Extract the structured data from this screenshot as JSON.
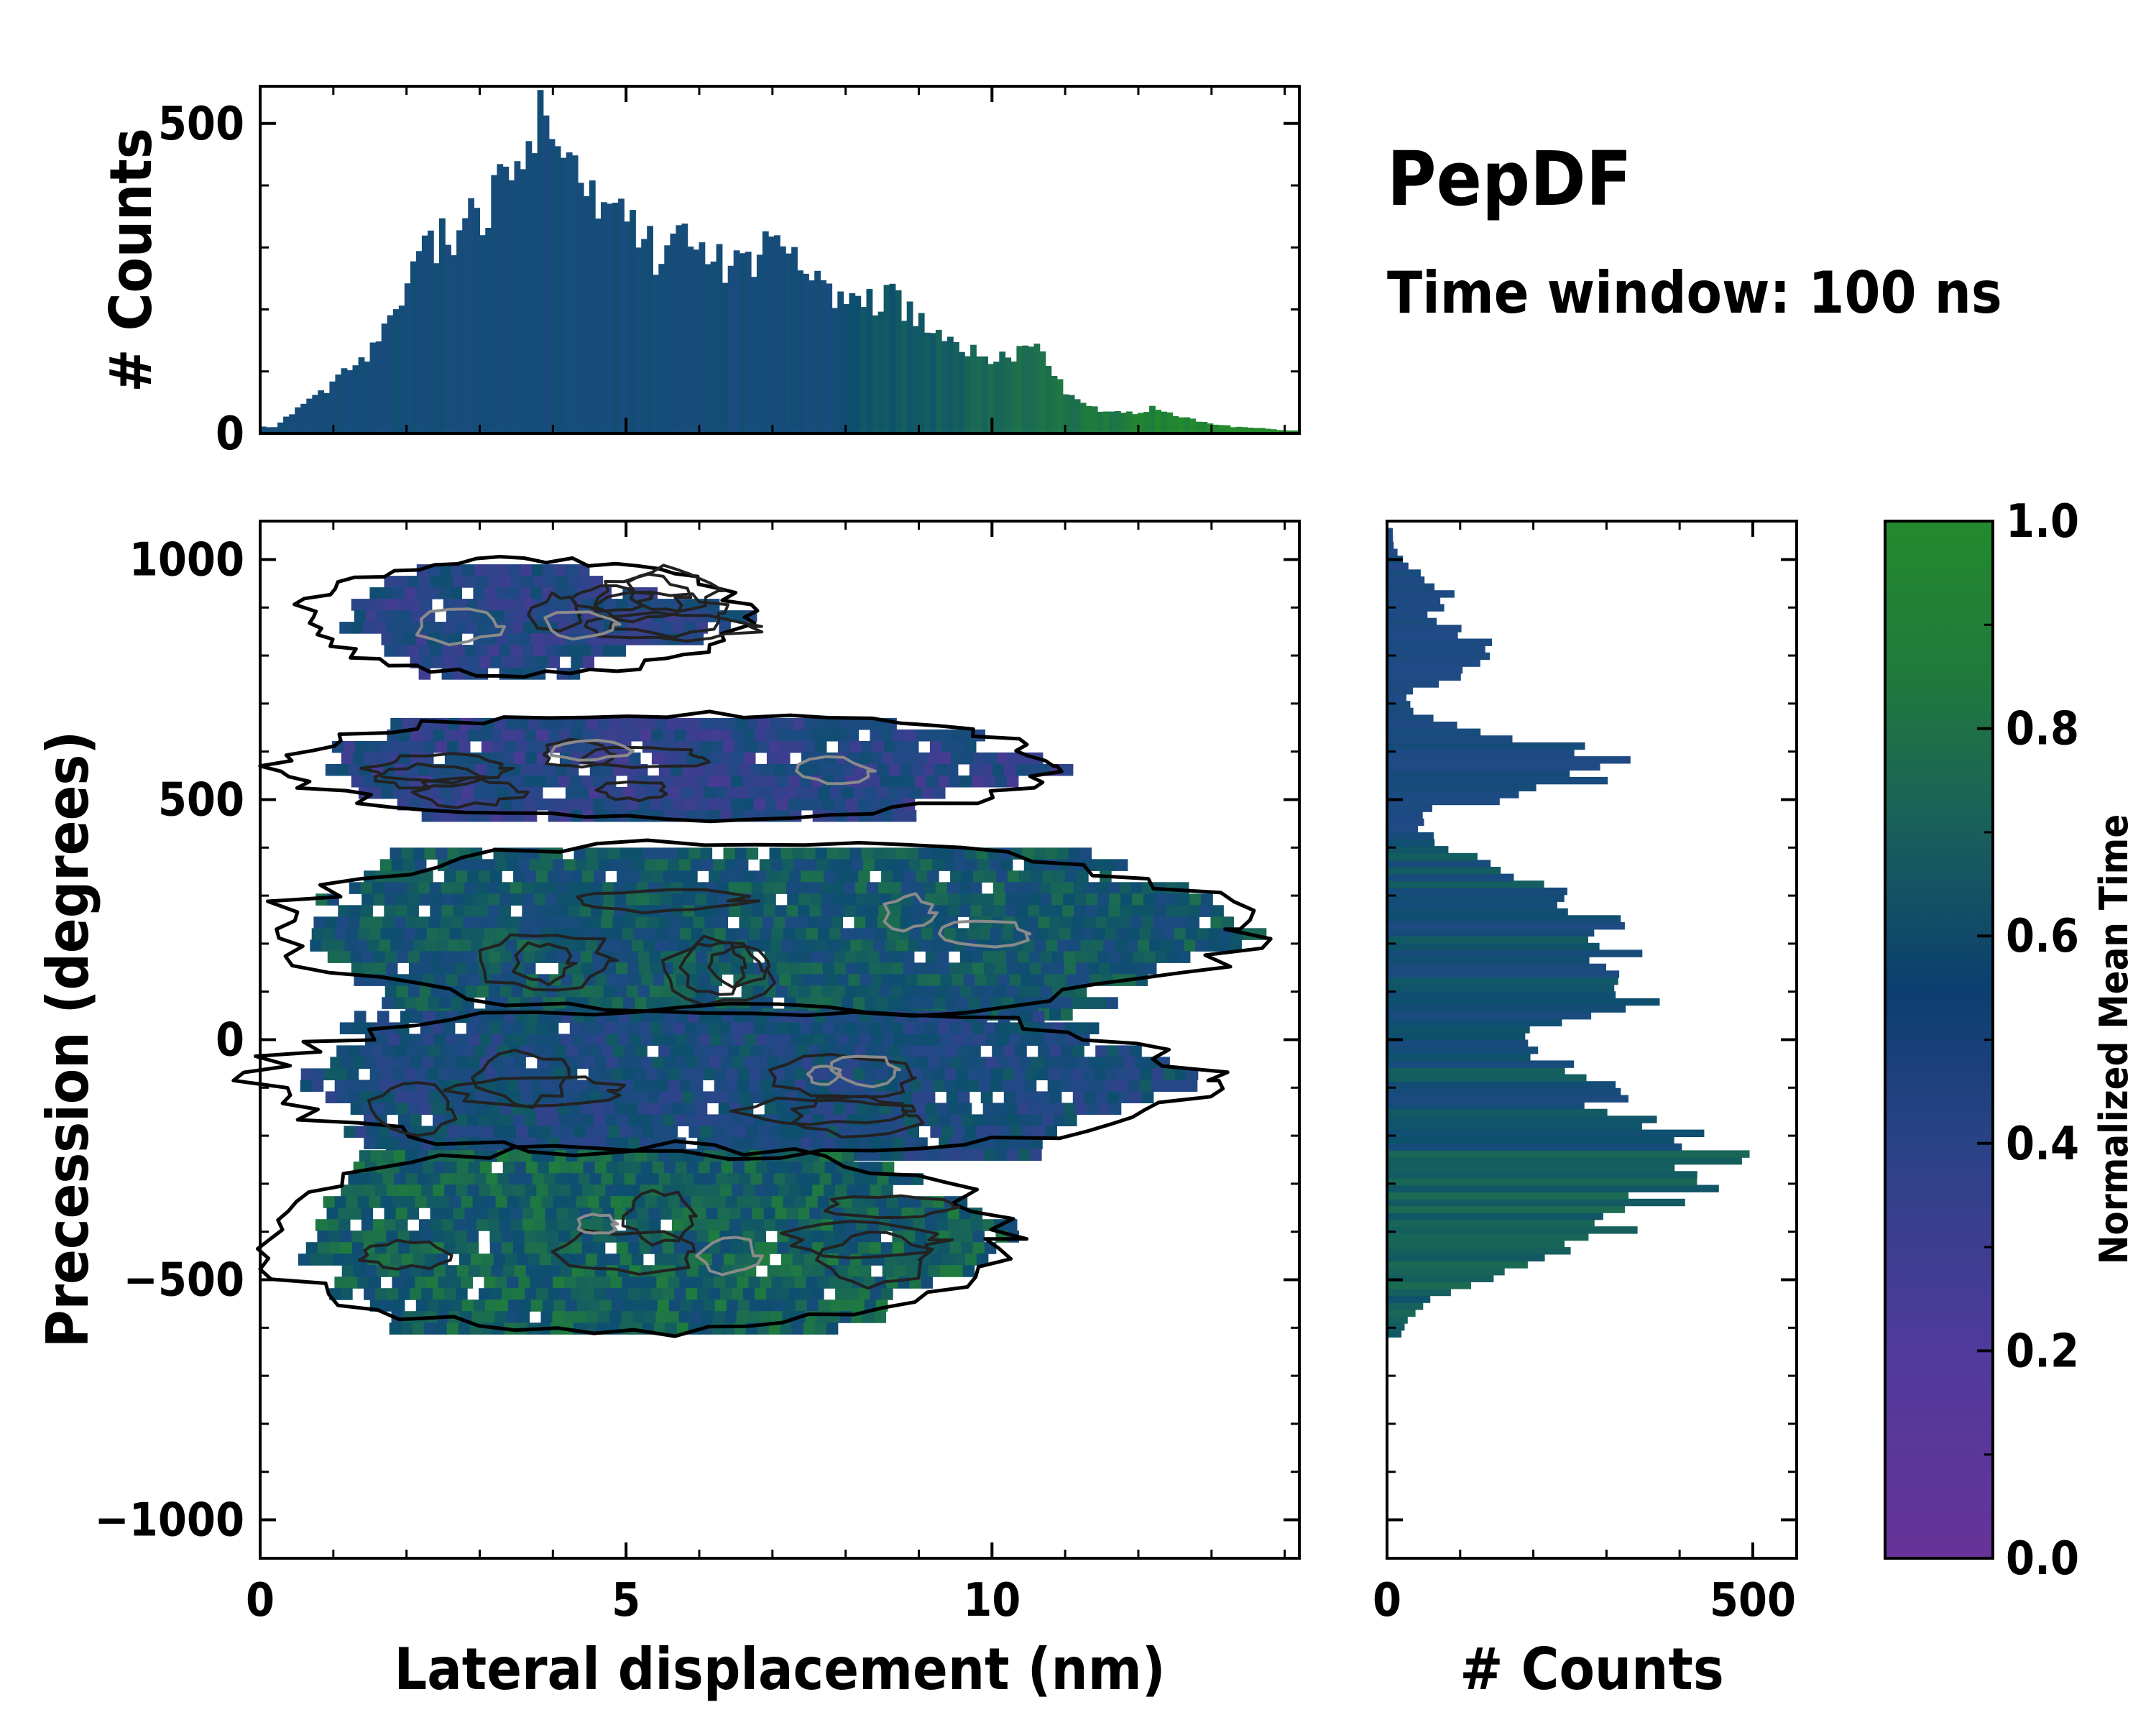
{
  "annotation": {
    "title": "PepDF",
    "subtitle": "Time window: 100 ns"
  },
  "chart_data": [
    {
      "type": "heatmap",
      "name": "joint-distribution",
      "xlabel": "Lateral displacement (nm)",
      "ylabel": "Precession (degrees)",
      "xlim": [
        0,
        14.2
      ],
      "ylim": [
        -1080,
        1080
      ],
      "xticks": [
        0,
        5,
        10
      ],
      "yticks": [
        -1000,
        -500,
        0,
        500,
        1000
      ],
      "xtick_labels": [
        "0",
        "5",
        "10"
      ],
      "ytick_labels": [
        "−1000",
        "−500",
        "0",
        "500",
        "1000"
      ],
      "contours": "density contours overlaid (black outer, grey inner levels)",
      "regions": [
        {
          "label": "upper band",
          "x": [
            0.8,
            7.2
          ],
          "y": [
            770,
            990
          ],
          "mean_time": 0.38
        },
        {
          "label": "upper-mid band",
          "x": [
            0.4,
            11.5
          ],
          "y": [
            470,
            670
          ],
          "mean_time": 0.35
        },
        {
          "label": "middle band",
          "x": [
            0.3,
            14.0
          ],
          "y": [
            60,
            400
          ],
          "mean_time": 0.62
        },
        {
          "label": "center band",
          "x": [
            0.2,
            13.4
          ],
          "y": [
            -230,
            60
          ],
          "mean_time": 0.48
        },
        {
          "label": "lower band",
          "x": [
            0.2,
            10.8
          ],
          "y": [
            -600,
            -230
          ],
          "mean_time": 0.7
        }
      ]
    },
    {
      "type": "bar",
      "name": "top-histogram",
      "ylabel": "# Counts",
      "xlim": [
        0,
        14.2
      ],
      "ylim": [
        0,
        560
      ],
      "yticks": [
        0,
        500
      ],
      "ytick_labels": [
        "0",
        "500"
      ],
      "x": [
        0.2,
        0.6,
        1.0,
        1.4,
        1.8,
        2.2,
        2.6,
        3.0,
        3.4,
        3.8,
        4.2,
        4.6,
        5.0,
        5.4,
        5.8,
        6.2,
        6.6,
        7.0,
        7.4,
        7.8,
        8.2,
        8.6,
        9.0,
        9.4,
        9.8,
        10.2,
        10.6,
        11.0,
        11.4,
        11.8,
        12.2,
        12.6,
        13.0,
        13.4,
        13.8,
        14.0
      ],
      "values": [
        10,
        50,
        80,
        120,
        175,
        300,
        320,
        355,
        420,
        500,
        490,
        360,
        340,
        290,
        340,
        280,
        260,
        330,
        270,
        220,
        210,
        220,
        180,
        160,
        130,
        120,
        150,
        70,
        40,
        30,
        40,
        25,
        15,
        10,
        8,
        5
      ]
    },
    {
      "type": "bar",
      "name": "right-histogram",
      "orientation": "horizontal",
      "xlabel": "# Counts",
      "xlim": [
        0,
        560
      ],
      "xticks": [
        0,
        500
      ],
      "xtick_labels": [
        "0",
        "500"
      ],
      "y": [
        -600,
        -560,
        -520,
        -480,
        -440,
        -400,
        -360,
        -320,
        -280,
        -240,
        -200,
        -160,
        -120,
        -80,
        -40,
        0,
        40,
        80,
        120,
        160,
        200,
        240,
        280,
        320,
        360,
        400,
        440,
        480,
        520,
        560,
        600,
        640,
        680,
        720,
        760,
        800,
        840,
        880,
        920,
        960,
        1000,
        1040
      ],
      "values": [
        20,
        40,
        90,
        170,
        260,
        300,
        340,
        390,
        440,
        500,
        420,
        320,
        300,
        280,
        230,
        220,
        250,
        330,
        380,
        340,
        320,
        300,
        270,
        220,
        160,
        90,
        40,
        60,
        240,
        300,
        290,
        120,
        40,
        30,
        100,
        150,
        120,
        60,
        90,
        50,
        20,
        8
      ]
    },
    {
      "type": "colorbar",
      "name": "colorbar",
      "label": "Normalized Mean Time",
      "ticks": [
        0.0,
        0.2,
        0.4,
        0.6,
        0.8,
        1.0
      ],
      "tick_labels": [
        "0.0",
        "0.2",
        "0.4",
        "0.6",
        "0.8",
        "1.0"
      ],
      "colormap": [
        "#663399",
        "#3b3f8f",
        "#1f4a84",
        "#0d4f6e",
        "#1b6b52",
        "#238a2d"
      ]
    }
  ]
}
